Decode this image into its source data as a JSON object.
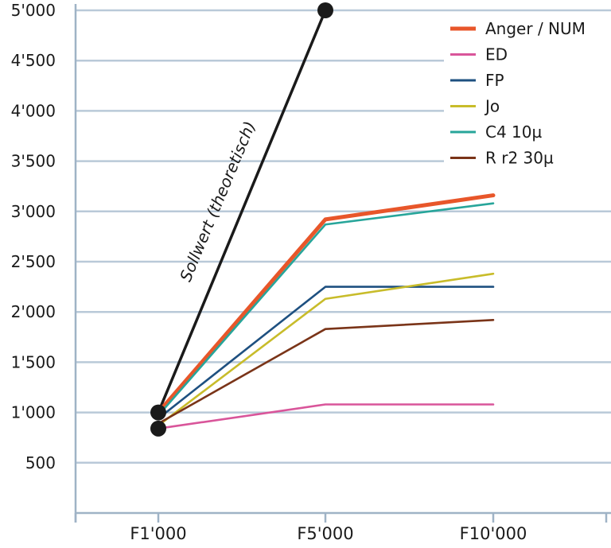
{
  "chart_data": {
    "type": "line",
    "categories": [
      "F1'000",
      "F5'000",
      "F10'000"
    ],
    "yticks": [
      "500",
      "1'000",
      "1'500",
      "2'000",
      "2'500",
      "3'000",
      "3'500",
      "4'000",
      "4'500",
      "5'000"
    ],
    "ytick_values": [
      500,
      1000,
      1500,
      2000,
      2500,
      3000,
      3500,
      4000,
      4500,
      5000
    ],
    "ylim": [
      0,
      5000
    ],
    "grid": true,
    "legend_position": "top-right",
    "series": [
      {
        "name": "Anger / NUM",
        "color": "#e8562a",
        "values": [
          1000,
          2920,
          3160
        ],
        "thick": true
      },
      {
        "name": "ED",
        "color": "#d9559a",
        "values": [
          840,
          1080,
          1080
        ]
      },
      {
        "name": "FP",
        "color": "#1e5080",
        "values": [
          940,
          2250,
          2250
        ]
      },
      {
        "name": "Jo",
        "color": "#c8bc2a",
        "values": [
          870,
          2130,
          2380
        ]
      },
      {
        "name": "C4 10µ",
        "color": "#27a59a",
        "values": [
          970,
          2870,
          3080
        ]
      },
      {
        "name": "R r2 30µ",
        "color": "#7a3418",
        "values": [
          890,
          1830,
          1920
        ]
      }
    ],
    "reference_line": {
      "label": "Sollwert (theoretisch)",
      "color": "#1a1a1a",
      "points": [
        {
          "x": "F1'000",
          "y": 1000
        },
        {
          "x": "F5'000",
          "y": 5000
        }
      ]
    },
    "markers": [
      {
        "x": "F1'000",
        "y": 1000
      },
      {
        "x": "F1'000",
        "y": 840
      },
      {
        "x": "F5'000",
        "y": 5000
      }
    ]
  }
}
